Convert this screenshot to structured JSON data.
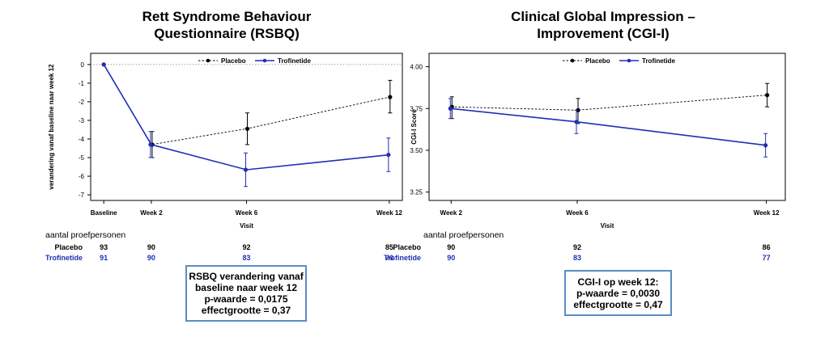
{
  "panels": [
    {
      "title_lines": [
        "Rett Syndrome Behaviour",
        "Questionnaire (RSBQ)"
      ],
      "subjects_title": "aantal proefpersonen",
      "subjects": {
        "placebo_label": "Placebo",
        "trofinetide_label": "Trofinetide",
        "placebo": [
          "93",
          "90",
          "92",
          "85"
        ],
        "trofinetide": [
          "91",
          "90",
          "83",
          "76"
        ]
      },
      "box_lines": [
        "RSBQ verandering vanaf",
        "baseline naar week 12",
        "p-waarde = 0,0175",
        "effectgrootte = 0,37"
      ]
    },
    {
      "title_lines": [
        "Clinical Global Impression –",
        "Improvement (CGI-I)"
      ],
      "subjects_title": "aantal proefpersonen",
      "subjects": {
        "placebo_label": "Placebo",
        "trofinetide_label": "Trofinetide",
        "placebo": [
          "90",
          "92",
          "86"
        ],
        "trofinetide": [
          "90",
          "83",
          "77"
        ]
      },
      "box_lines": [
        "CGI-I op week 12:",
        "p-waarde = 0,0030",
        "effectgrootte = 0,47"
      ]
    }
  ],
  "colors": {
    "placebo": "#000000",
    "trofinetide": "#1f2fb5",
    "box_border": "#5b8cc4"
  },
  "chart_data": [
    {
      "type": "line",
      "title": "Rett Syndrome Behaviour Questionnaire (RSBQ)",
      "xlabel": "Visit",
      "ylabel": "verandering vanaf baseline naar week 12",
      "categories": [
        "Baseline",
        "Week 2",
        "Week 6",
        "Week 12"
      ],
      "x_positions": [
        0,
        2,
        6,
        12
      ],
      "ylim": [
        -7.3,
        0.6
      ],
      "yticks": [
        "0",
        "-1",
        "-2",
        "-3",
        "-4",
        "-5",
        "-6",
        "-7"
      ],
      "ytick_values": [
        0,
        -1,
        -2,
        -3,
        -4,
        -5,
        -6,
        -7
      ],
      "legend_position": "top-center",
      "reference_line_y": 0,
      "series": [
        {
          "name": "Placebo",
          "style": "dashed",
          "values": [
            0,
            -4.3,
            -3.45,
            -1.75
          ],
          "error_low": [
            0,
            -5.0,
            -4.3,
            -2.6
          ],
          "error_high": [
            0,
            -3.6,
            -2.6,
            -0.85
          ]
        },
        {
          "name": "Trofinetide",
          "style": "solid",
          "values": [
            0,
            -4.3,
            -5.65,
            -4.85
          ],
          "error_low": [
            0,
            -5.0,
            -6.55,
            -5.75
          ],
          "error_high": [
            0,
            -3.6,
            -4.75,
            -3.95
          ]
        }
      ]
    },
    {
      "type": "line",
      "title": "Clinical Global Impression – Improvement (CGI-I)",
      "xlabel": "Visit",
      "ylabel": "CGI-I Score",
      "categories": [
        "Week 2",
        "Week 6",
        "Week 12"
      ],
      "x_positions": [
        2,
        6,
        12
      ],
      "ylim": [
        3.2,
        4.08
      ],
      "yticks": [
        "4.00",
        "3.75",
        "3.50",
        "3.25"
      ],
      "ytick_values": [
        4.0,
        3.75,
        3.5,
        3.25
      ],
      "legend_position": "top-center",
      "series": [
        {
          "name": "Placebo",
          "style": "dashed",
          "values": [
            3.76,
            3.74,
            3.83
          ],
          "error_low": [
            3.69,
            3.66,
            3.76
          ],
          "error_high": [
            3.82,
            3.81,
            3.9
          ]
        },
        {
          "name": "Trofinetide",
          "style": "solid",
          "values": [
            3.75,
            3.67,
            3.53
          ],
          "error_low": [
            3.69,
            3.6,
            3.46
          ],
          "error_high": [
            3.81,
            3.74,
            3.6
          ]
        }
      ]
    }
  ]
}
